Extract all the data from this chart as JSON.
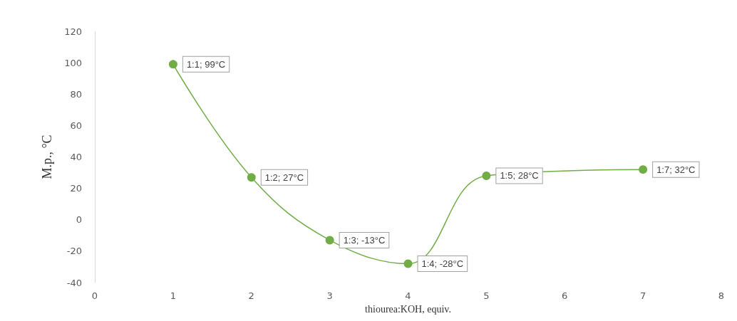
{
  "chart_data": {
    "type": "line",
    "xlabel": "thiourea:KOH, equiv.",
    "ylabel": "M.p., °C",
    "x": [
      1,
      2,
      3,
      4,
      5,
      7
    ],
    "values": [
      99,
      27,
      -13,
      -28,
      28,
      32
    ],
    "value_labels": [
      "1:1; 99°C",
      "1:2; 27°C",
      "1:3; -13°C",
      "1:4; -28°C",
      "1:5; 28°C",
      "1:7; 32°C"
    ],
    "color": "#70ad47",
    "marker": "circle",
    "line_style": "solid",
    "xlim": [
      0,
      8
    ],
    "xticks": [
      0,
      1,
      2,
      3,
      4,
      5,
      6,
      7,
      8
    ],
    "ylim": [
      -40,
      120
    ],
    "yticks": [
      -40,
      -20,
      0,
      20,
      40,
      60,
      80,
      100,
      120
    ]
  }
}
